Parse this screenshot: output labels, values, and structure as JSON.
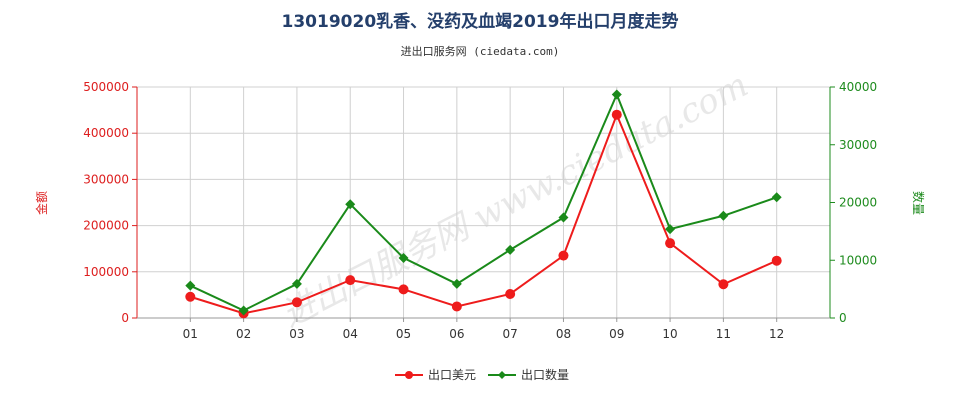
{
  "chart_data": {
    "type": "line",
    "title": "13019020乳香、没药及血竭2019年出口月度走势",
    "subtitle": "进出口服务网 (ciedata.com)",
    "watermark": "进出口服务网 www.ciedata.com",
    "categories": [
      "01",
      "02",
      "03",
      "04",
      "05",
      "06",
      "07",
      "08",
      "09",
      "10",
      "11",
      "12"
    ],
    "y_left": {
      "label": "金额",
      "ylim": [
        0,
        500000
      ],
      "ticks": [
        "0",
        "100000",
        "200000",
        "300000",
        "400000",
        "500000"
      ],
      "color": "#dd1e1e"
    },
    "y_right": {
      "label": "数量",
      "ylim": [
        0,
        40000
      ],
      "ticks": [
        "0",
        "10000",
        "20000",
        "30000",
        "40000"
      ],
      "color": "#1e8b1e"
    },
    "series": [
      {
        "name": "出口美元",
        "axis": "left",
        "color": "#ee1c1c",
        "values": [
          46000,
          10000,
          34000,
          82000,
          62000,
          25000,
          52000,
          135000,
          440000,
          162000,
          73000,
          124000
        ]
      },
      {
        "name": "出口数量",
        "axis": "right",
        "color": "#1a8a1a",
        "values": [
          5600,
          1300,
          5900,
          19700,
          10400,
          5900,
          11800,
          17400,
          38700,
          15400,
          17700,
          20900
        ]
      }
    ],
    "grid": true,
    "legend_position": "bottom-center"
  }
}
